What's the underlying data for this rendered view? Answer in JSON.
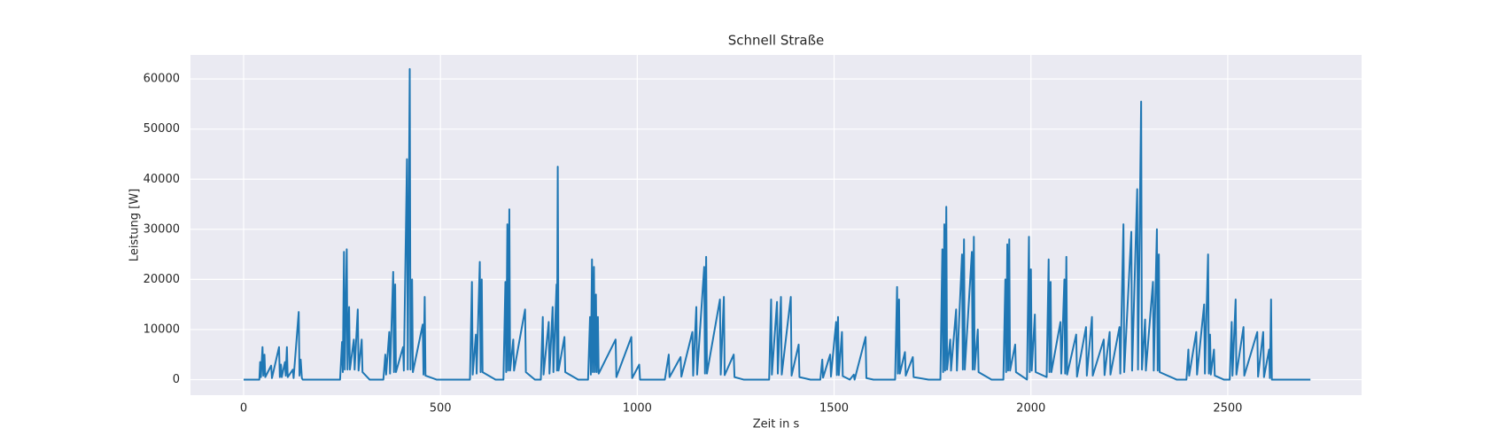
{
  "chart_data": {
    "type": "line",
    "title": "Schnell Straße",
    "x_label": "Zeit in s",
    "y_label": "Leistung [W]",
    "color": "#1f77b4",
    "grid": true,
    "xlim": [
      -135,
      2840
    ],
    "ylim": [
      -3100,
      64800
    ],
    "xticks": [
      0,
      500,
      1000,
      1500,
      2000,
      2500
    ],
    "yticks": [
      0,
      10000,
      20000,
      30000,
      40000,
      50000,
      60000
    ],
    "x": [
      0,
      40,
      42,
      44,
      48,
      50,
      53,
      55,
      70,
      72,
      90,
      92,
      95,
      97,
      105,
      107,
      110,
      112,
      125,
      127,
      140,
      142,
      145,
      148,
      150,
      245,
      250,
      252,
      255,
      257,
      262,
      264,
      268,
      270,
      280,
      282,
      290,
      292,
      300,
      302,
      320,
      355,
      360,
      362,
      370,
      372,
      380,
      382,
      385,
      387,
      405,
      407,
      415,
      417,
      422,
      424,
      428,
      430,
      455,
      457,
      460,
      462,
      490,
      575,
      580,
      582,
      590,
      592,
      600,
      602,
      605,
      607,
      640,
      660,
      665,
      667,
      670,
      672,
      675,
      677,
      685,
      687,
      715,
      717,
      740,
      755,
      760,
      762,
      775,
      777,
      785,
      787,
      795,
      796,
      798,
      800,
      815,
      817,
      850,
      875,
      880,
      882,
      885,
      887,
      890,
      892,
      895,
      897,
      900,
      902,
      945,
      947,
      985,
      987,
      1005,
      1007,
      1070,
      1080,
      1082,
      1110,
      1112,
      1140,
      1142,
      1150,
      1152,
      1170,
      1172,
      1175,
      1177,
      1210,
      1212,
      1220,
      1222,
      1245,
      1247,
      1270,
      1335,
      1340,
      1342,
      1355,
      1357,
      1365,
      1367,
      1390,
      1392,
      1410,
      1412,
      1440,
      1465,
      1470,
      1472,
      1490,
      1492,
      1505,
      1507,
      1510,
      1512,
      1520,
      1522,
      1540,
      1550,
      1552,
      1580,
      1582,
      1600,
      1655,
      1660,
      1662,
      1665,
      1667,
      1680,
      1682,
      1700,
      1702,
      1740,
      1770,
      1775,
      1777,
      1780,
      1782,
      1785,
      1787,
      1795,
      1797,
      1810,
      1812,
      1825,
      1827,
      1830,
      1832,
      1850,
      1852,
      1855,
      1857,
      1865,
      1867,
      1900,
      1930,
      1935,
      1937,
      1940,
      1942,
      1945,
      1947,
      1960,
      1962,
      1990,
      1995,
      1997,
      2000,
      2002,
      2010,
      2012,
      2040,
      2045,
      2047,
      2050,
      2052,
      2075,
      2077,
      2085,
      2087,
      2090,
      2092,
      2115,
      2117,
      2140,
      2142,
      2155,
      2157,
      2185,
      2187,
      2200,
      2202,
      2225,
      2227,
      2235,
      2237,
      2255,
      2257,
      2270,
      2272,
      2280,
      2282,
      2290,
      2292,
      2310,
      2312,
      2320,
      2322,
      2325,
      2327,
      2370,
      2395,
      2400,
      2402,
      2420,
      2422,
      2440,
      2442,
      2450,
      2452,
      2455,
      2457,
      2465,
      2467,
      2490,
      2505,
      2510,
      2512,
      2520,
      2522,
      2540,
      2542,
      2575,
      2577,
      2590,
      2592,
      2605,
      2607,
      2610,
      2612,
      2710
    ],
    "values": [
      0,
      0,
      3500,
      500,
      6500,
      800,
      5000,
      500,
      2800,
      300,
      6500,
      500,
      3000,
      500,
      3500,
      800,
      6500,
      500,
      2000,
      300,
      13500,
      800,
      4000,
      300,
      0,
      0,
      7500,
      1500,
      25500,
      2000,
      26000,
      2000,
      14500,
      2000,
      8000,
      2000,
      14000,
      1800,
      8000,
      1500,
      0,
      0,
      5000,
      1000,
      9500,
      1200,
      21500,
      1500,
      19000,
      1500,
      6500,
      1800,
      44000,
      2000,
      62000,
      2000,
      20000,
      1500,
      11000,
      1000,
      16500,
      800,
      0,
      0,
      19500,
      1000,
      9000,
      1200,
      23500,
      1500,
      20000,
      1500,
      0,
      0,
      19500,
      1500,
      31000,
      1800,
      34000,
      1800,
      8000,
      1800,
      14000,
      1500,
      0,
      0,
      12500,
      1000,
      11500,
      1200,
      14500,
      1500,
      19000,
      1800,
      42500,
      1800,
      8500,
      1500,
      0,
      0,
      12500,
      1000,
      24000,
      1500,
      22500,
      1500,
      17000,
      1500,
      12500,
      1200,
      8000,
      500,
      8500,
      300,
      3000,
      0,
      0,
      5000,
      500,
      4500,
      600,
      9500,
      800,
      14500,
      1000,
      22500,
      1200,
      24500,
      1200,
      16000,
      1000,
      16500,
      900,
      5000,
      500,
      0,
      0,
      16000,
      1000,
      15500,
      1200,
      16500,
      1000,
      16500,
      800,
      7000,
      500,
      0,
      0,
      4000,
      400,
      5000,
      600,
      11500,
      900,
      12500,
      900,
      9500,
      700,
      0,
      1000,
      0,
      8500,
      300,
      0,
      0,
      18500,
      1200,
      16000,
      1200,
      5500,
      800,
      4500,
      500,
      0,
      0,
      26000,
      1500,
      31000,
      1800,
      34500,
      2000,
      8000,
      1800,
      14000,
      1800,
      25000,
      2000,
      28000,
      2000,
      25500,
      2000,
      28500,
      2000,
      10000,
      1500,
      0,
      0,
      20000,
      1500,
      27000,
      1800,
      28000,
      1800,
      7000,
      1500,
      0,
      28500,
      1500,
      22000,
      1800,
      13000,
      1500,
      500,
      24000,
      1500,
      19500,
      1500,
      11500,
      1200,
      20000,
      1200,
      24500,
      1000,
      9000,
      600,
      10500,
      800,
      12500,
      800,
      8000,
      900,
      9500,
      1000,
      10500,
      1200,
      31000,
      1500,
      29500,
      1800,
      38000,
      2000,
      55500,
      2000,
      12000,
      1800,
      19500,
      1800,
      30000,
      1800,
      25000,
      1500,
      0,
      0,
      6000,
      800,
      9500,
      1000,
      15000,
      1200,
      25000,
      1200,
      9000,
      1000,
      6000,
      800,
      0,
      0,
      11500,
      800,
      16000,
      1000,
      10500,
      800,
      9500,
      600,
      9500,
      500,
      6000,
      300,
      16000,
      0,
      0
    ]
  }
}
